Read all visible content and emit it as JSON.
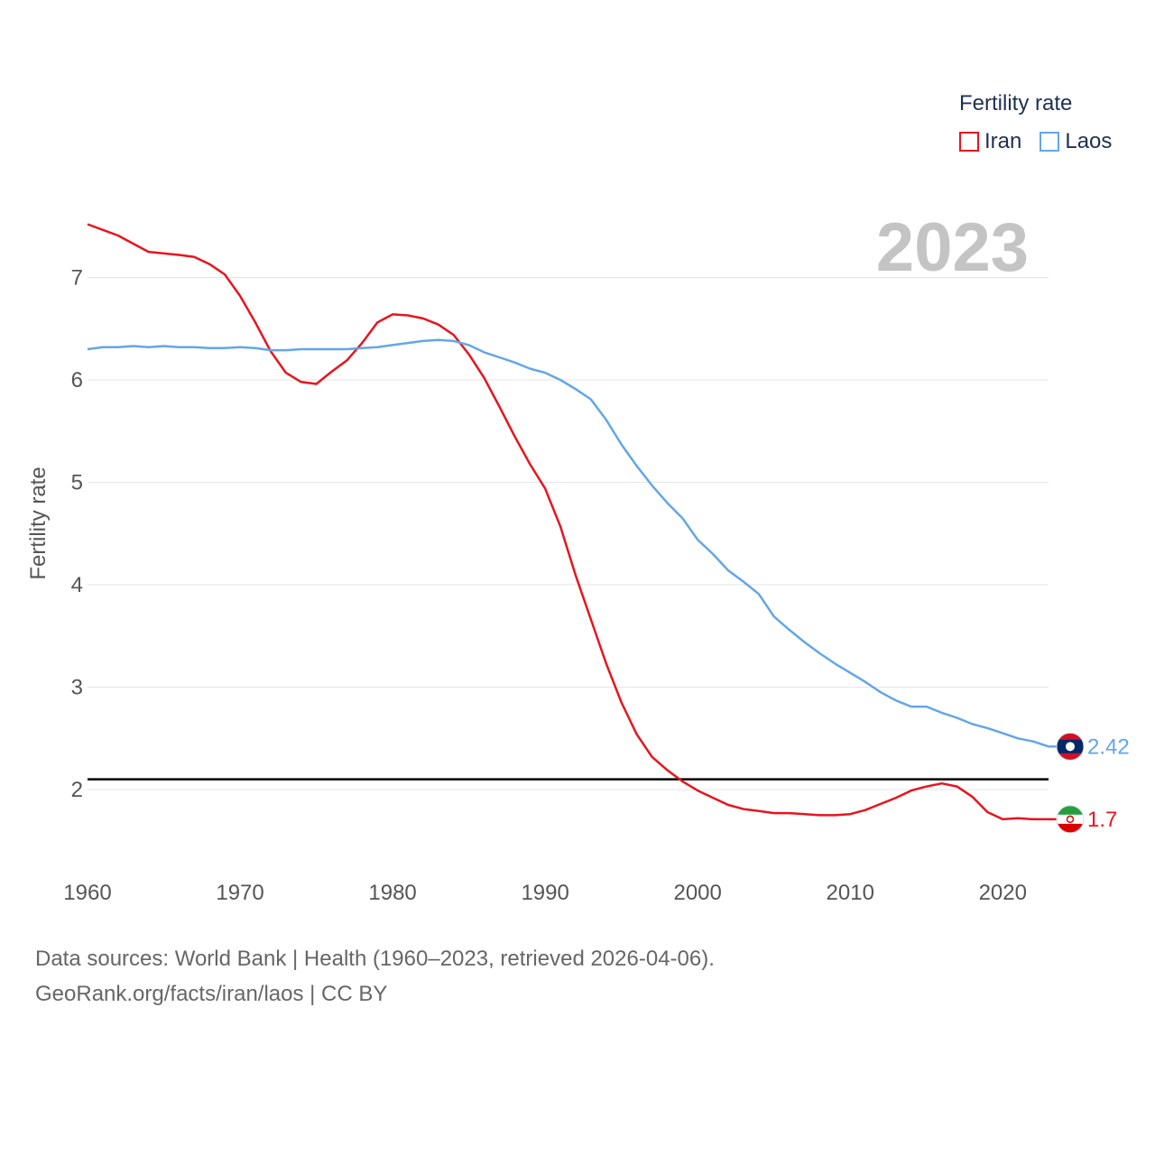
{
  "chart_data": {
    "type": "line",
    "year_label": "2023",
    "legend_title": "Fertility rate",
    "ylabel": "Fertility rate",
    "xlabel": "",
    "xlim": [
      1960,
      2023
    ],
    "ylim": [
      1.4,
      7.6
    ],
    "x_ticks": [
      1960,
      1970,
      1980,
      1990,
      2000,
      2010,
      2020
    ],
    "y_ticks": [
      2,
      3,
      4,
      5,
      6,
      7
    ],
    "reference_line": 2.1,
    "series": [
      {
        "name": "Iran",
        "color": "#e8141e",
        "end_label": "1.7",
        "flag_icon": "iran-flag-icon",
        "points": [
          [
            1960,
            7.52
          ],
          [
            1962,
            7.41
          ],
          [
            1964,
            7.25
          ],
          [
            1966,
            7.22
          ],
          [
            1967,
            7.2
          ],
          [
            1968,
            7.13
          ],
          [
            1969,
            7.03
          ],
          [
            1970,
            6.82
          ],
          [
            1971,
            6.56
          ],
          [
            1972,
            6.28
          ],
          [
            1973,
            6.07
          ],
          [
            1974,
            5.98
          ],
          [
            1975,
            5.96
          ],
          [
            1976,
            6.08
          ],
          [
            1977,
            6.19
          ],
          [
            1978,
            6.36
          ],
          [
            1979,
            6.56
          ],
          [
            1980,
            6.64
          ],
          [
            1981,
            6.63
          ],
          [
            1982,
            6.6
          ],
          [
            1983,
            6.54
          ],
          [
            1984,
            6.44
          ],
          [
            1985,
            6.25
          ],
          [
            1986,
            6.02
          ],
          [
            1987,
            5.74
          ],
          [
            1988,
            5.45
          ],
          [
            1989,
            5.18
          ],
          [
            1990,
            4.94
          ],
          [
            1991,
            4.57
          ],
          [
            1992,
            4.09
          ],
          [
            1993,
            3.66
          ],
          [
            1994,
            3.23
          ],
          [
            1995,
            2.85
          ],
          [
            1996,
            2.54
          ],
          [
            1997,
            2.32
          ],
          [
            1998,
            2.19
          ],
          [
            1999,
            2.08
          ],
          [
            2000,
            1.99
          ],
          [
            2001,
            1.92
          ],
          [
            2002,
            1.85
          ],
          [
            2003,
            1.81
          ],
          [
            2004,
            1.79
          ],
          [
            2005,
            1.77
          ],
          [
            2006,
            1.77
          ],
          [
            2007,
            1.76
          ],
          [
            2008,
            1.75
          ],
          [
            2009,
            1.75
          ],
          [
            2010,
            1.76
          ],
          [
            2011,
            1.8
          ],
          [
            2012,
            1.86
          ],
          [
            2013,
            1.92
          ],
          [
            2014,
            1.99
          ],
          [
            2015,
            2.03
          ],
          [
            2016,
            2.06
          ],
          [
            2017,
            2.03
          ],
          [
            2018,
            1.93
          ],
          [
            2019,
            1.78
          ],
          [
            2020,
            1.71
          ],
          [
            2021,
            1.72
          ],
          [
            2022,
            1.71
          ],
          [
            2023,
            1.71
          ]
        ]
      },
      {
        "name": "Laos",
        "color": "#63a6e8",
        "end_label": "2.42",
        "flag_icon": "laos-flag-icon",
        "points": [
          [
            1960,
            6.3
          ],
          [
            1961,
            6.32
          ],
          [
            1962,
            6.32
          ],
          [
            1963,
            6.33
          ],
          [
            1964,
            6.32
          ],
          [
            1965,
            6.33
          ],
          [
            1966,
            6.32
          ],
          [
            1967,
            6.32
          ],
          [
            1968,
            6.31
          ],
          [
            1969,
            6.31
          ],
          [
            1970,
            6.32
          ],
          [
            1971,
            6.31
          ],
          [
            1972,
            6.29
          ],
          [
            1973,
            6.29
          ],
          [
            1974,
            6.3
          ],
          [
            1975,
            6.3
          ],
          [
            1976,
            6.3
          ],
          [
            1977,
            6.3
          ],
          [
            1978,
            6.31
          ],
          [
            1979,
            6.32
          ],
          [
            1980,
            6.34
          ],
          [
            1981,
            6.36
          ],
          [
            1982,
            6.38
          ],
          [
            1983,
            6.39
          ],
          [
            1984,
            6.38
          ],
          [
            1985,
            6.34
          ],
          [
            1986,
            6.27
          ],
          [
            1987,
            6.22
          ],
          [
            1988,
            6.17
          ],
          [
            1989,
            6.11
          ],
          [
            1990,
            6.07
          ],
          [
            1991,
            6.0
          ],
          [
            1992,
            5.91
          ],
          [
            1993,
            5.81
          ],
          [
            1994,
            5.61
          ],
          [
            1995,
            5.37
          ],
          [
            1996,
            5.16
          ],
          [
            1997,
            4.97
          ],
          [
            1998,
            4.8
          ],
          [
            1999,
            4.65
          ],
          [
            2000,
            4.44
          ],
          [
            2001,
            4.3
          ],
          [
            2002,
            4.14
          ],
          [
            2003,
            4.03
          ],
          [
            2004,
            3.91
          ],
          [
            2005,
            3.69
          ],
          [
            2006,
            3.56
          ],
          [
            2007,
            3.44
          ],
          [
            2008,
            3.33
          ],
          [
            2009,
            3.23
          ],
          [
            2010,
            3.14
          ],
          [
            2011,
            3.05
          ],
          [
            2012,
            2.95
          ],
          [
            2013,
            2.87
          ],
          [
            2014,
            2.81
          ],
          [
            2015,
            2.81
          ],
          [
            2016,
            2.75
          ],
          [
            2017,
            2.7
          ],
          [
            2018,
            2.64
          ],
          [
            2019,
            2.6
          ],
          [
            2020,
            2.55
          ],
          [
            2021,
            2.5
          ],
          [
            2022,
            2.47
          ],
          [
            2023,
            2.42
          ]
        ]
      }
    ]
  },
  "footer": {
    "sources": "Data sources: World Bank | Health (1960–2023, retrieved 2026-04-06).",
    "credit": "GeoRank.org/facts/iran/laos | CC BY"
  }
}
